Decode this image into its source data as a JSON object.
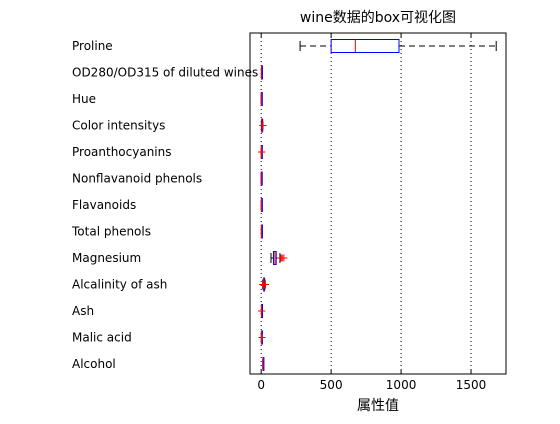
{
  "chart_data": {
    "type": "boxplot",
    "orientation": "horizontal",
    "title": "wine数据的box可视化图",
    "xlabel": "属性值",
    "ylabel": "",
    "xlim": [
      -80,
      1750
    ],
    "xticks": [
      0,
      500,
      1000,
      1500
    ],
    "xtick_labels": [
      "0",
      "500",
      "1000",
      "1500"
    ],
    "grid": "x-dotted",
    "colors": {
      "box": "#0000ff",
      "median": "#ff0000",
      "whisker": "#000000",
      "outlier": "#ff0000",
      "grid": "#000000",
      "axis": "#000000"
    },
    "categories": [
      "Proline",
      "OD280/OD315 of diluted wines",
      "Hue",
      "Color intensitys",
      "Proanthocyanins",
      "Nonflavanoid phenols",
      "Flavanoids",
      "Total phenols",
      "Magnesium",
      "Alcalinity of ash",
      "Ash",
      "Malic acid",
      "Alcohol"
    ],
    "boxes": [
      {
        "min": 278,
        "q1": 500,
        "median": 673,
        "q3": 985,
        "max": 1680,
        "outliers": []
      },
      {
        "min": 1.27,
        "q1": 1.93,
        "median": 2.78,
        "q3": 3.17,
        "max": 4.0,
        "outliers": []
      },
      {
        "min": 0.48,
        "q1": 0.78,
        "median": 0.96,
        "q3": 1.12,
        "max": 1.71,
        "outliers": []
      },
      {
        "min": 1.28,
        "q1": 3.22,
        "median": 4.69,
        "q3": 6.2,
        "max": 10.8,
        "outliers": [
          11.75,
          13.0,
          13.0,
          13.4
        ]
      },
      {
        "min": 0.41,
        "q1": 1.25,
        "median": 1.56,
        "q3": 1.95,
        "max": 2.96,
        "outliers": [
          3.28,
          3.58
        ]
      },
      {
        "min": 0.13,
        "q1": 0.27,
        "median": 0.34,
        "q3": 0.44,
        "max": 0.66,
        "outliers": []
      },
      {
        "min": 0.34,
        "q1": 1.2,
        "median": 2.14,
        "q3": 2.88,
        "max": 5.08,
        "outliers": []
      },
      {
        "min": 0.98,
        "q1": 1.74,
        "median": 2.36,
        "q3": 2.8,
        "max": 3.88,
        "outliers": []
      },
      {
        "min": 70,
        "q1": 88,
        "median": 98,
        "q3": 107,
        "max": 134,
        "outliers": [
          139,
          147,
          151,
          162
        ]
      },
      {
        "min": 11.2,
        "q1": 17.2,
        "median": 19.5,
        "q3": 21.5,
        "max": 27.0,
        "outliers": [
          10.6,
          28.5,
          30.0,
          30.0
        ]
      },
      {
        "min": 1.7,
        "q1": 2.21,
        "median": 2.36,
        "q3": 2.56,
        "max": 3.07,
        "outliers": [
          1.36,
          3.22,
          3.23
        ]
      },
      {
        "min": 0.74,
        "q1": 1.6,
        "median": 1.87,
        "q3": 3.08,
        "max": 5.65,
        "outliers": [
          5.8
        ]
      },
      {
        "min": 11.03,
        "q1": 12.36,
        "median": 13.05,
        "q3": 13.68,
        "max": 14.83,
        "outliers": []
      }
    ]
  }
}
